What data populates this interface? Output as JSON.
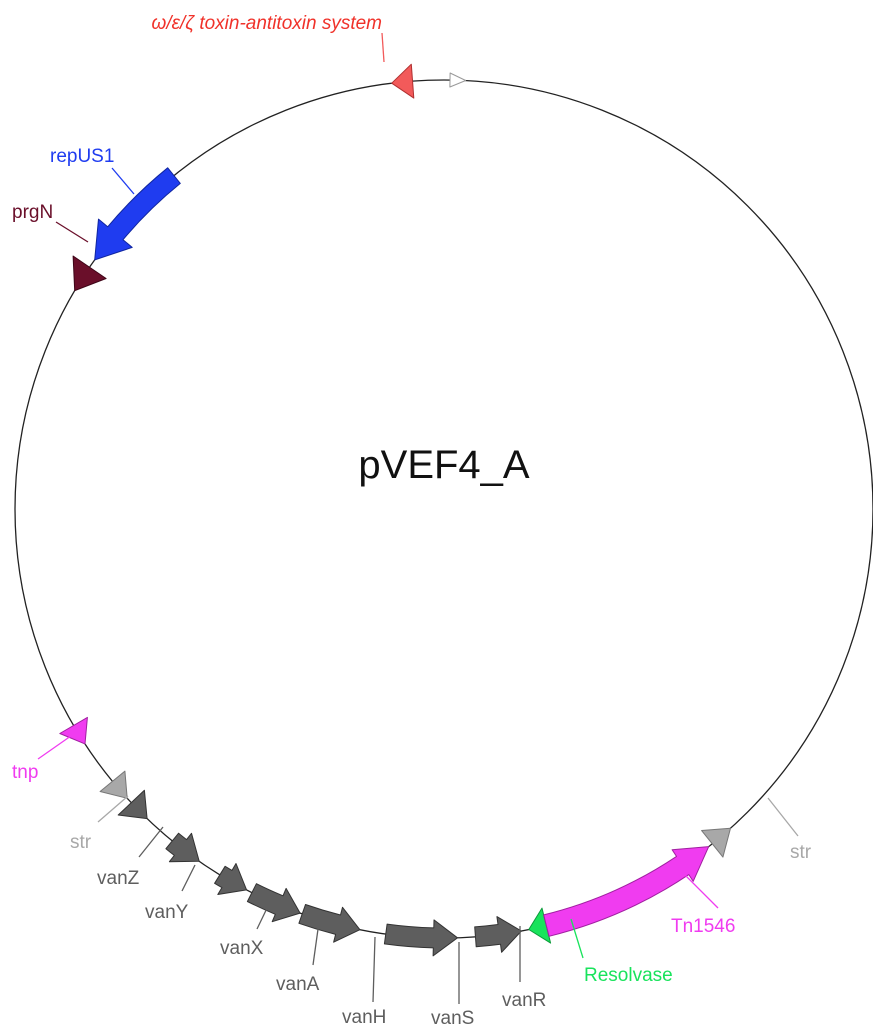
{
  "plasmid": {
    "name": "pVEF4_A"
  },
  "colors": {
    "toxin": "#f25a5a",
    "repUS1": "#1f3cf0",
    "prgN": "#6a0f2a",
    "tnp": "#f03cf0",
    "str": "#a8a8a8",
    "van": "#5e5e5e",
    "resolvase": "#19e35c",
    "tn1546": "#f03cf0",
    "marker": "#ffffff"
  },
  "labels": {
    "toxin": "ω/ε/ζ toxin-antitoxin system",
    "repUS1": "repUS1",
    "prgN": "prgN",
    "tnp": "tnp",
    "str_left": "str",
    "vanZ": "vanZ",
    "vanY": "vanY",
    "vanX": "vanX",
    "vanA": "vanA",
    "vanH": "vanH",
    "vanS": "vanS",
    "vanR": "vanR",
    "resolvase": "Resolvase",
    "tn1546": "Tn1546",
    "str_right": "str"
  }
}
